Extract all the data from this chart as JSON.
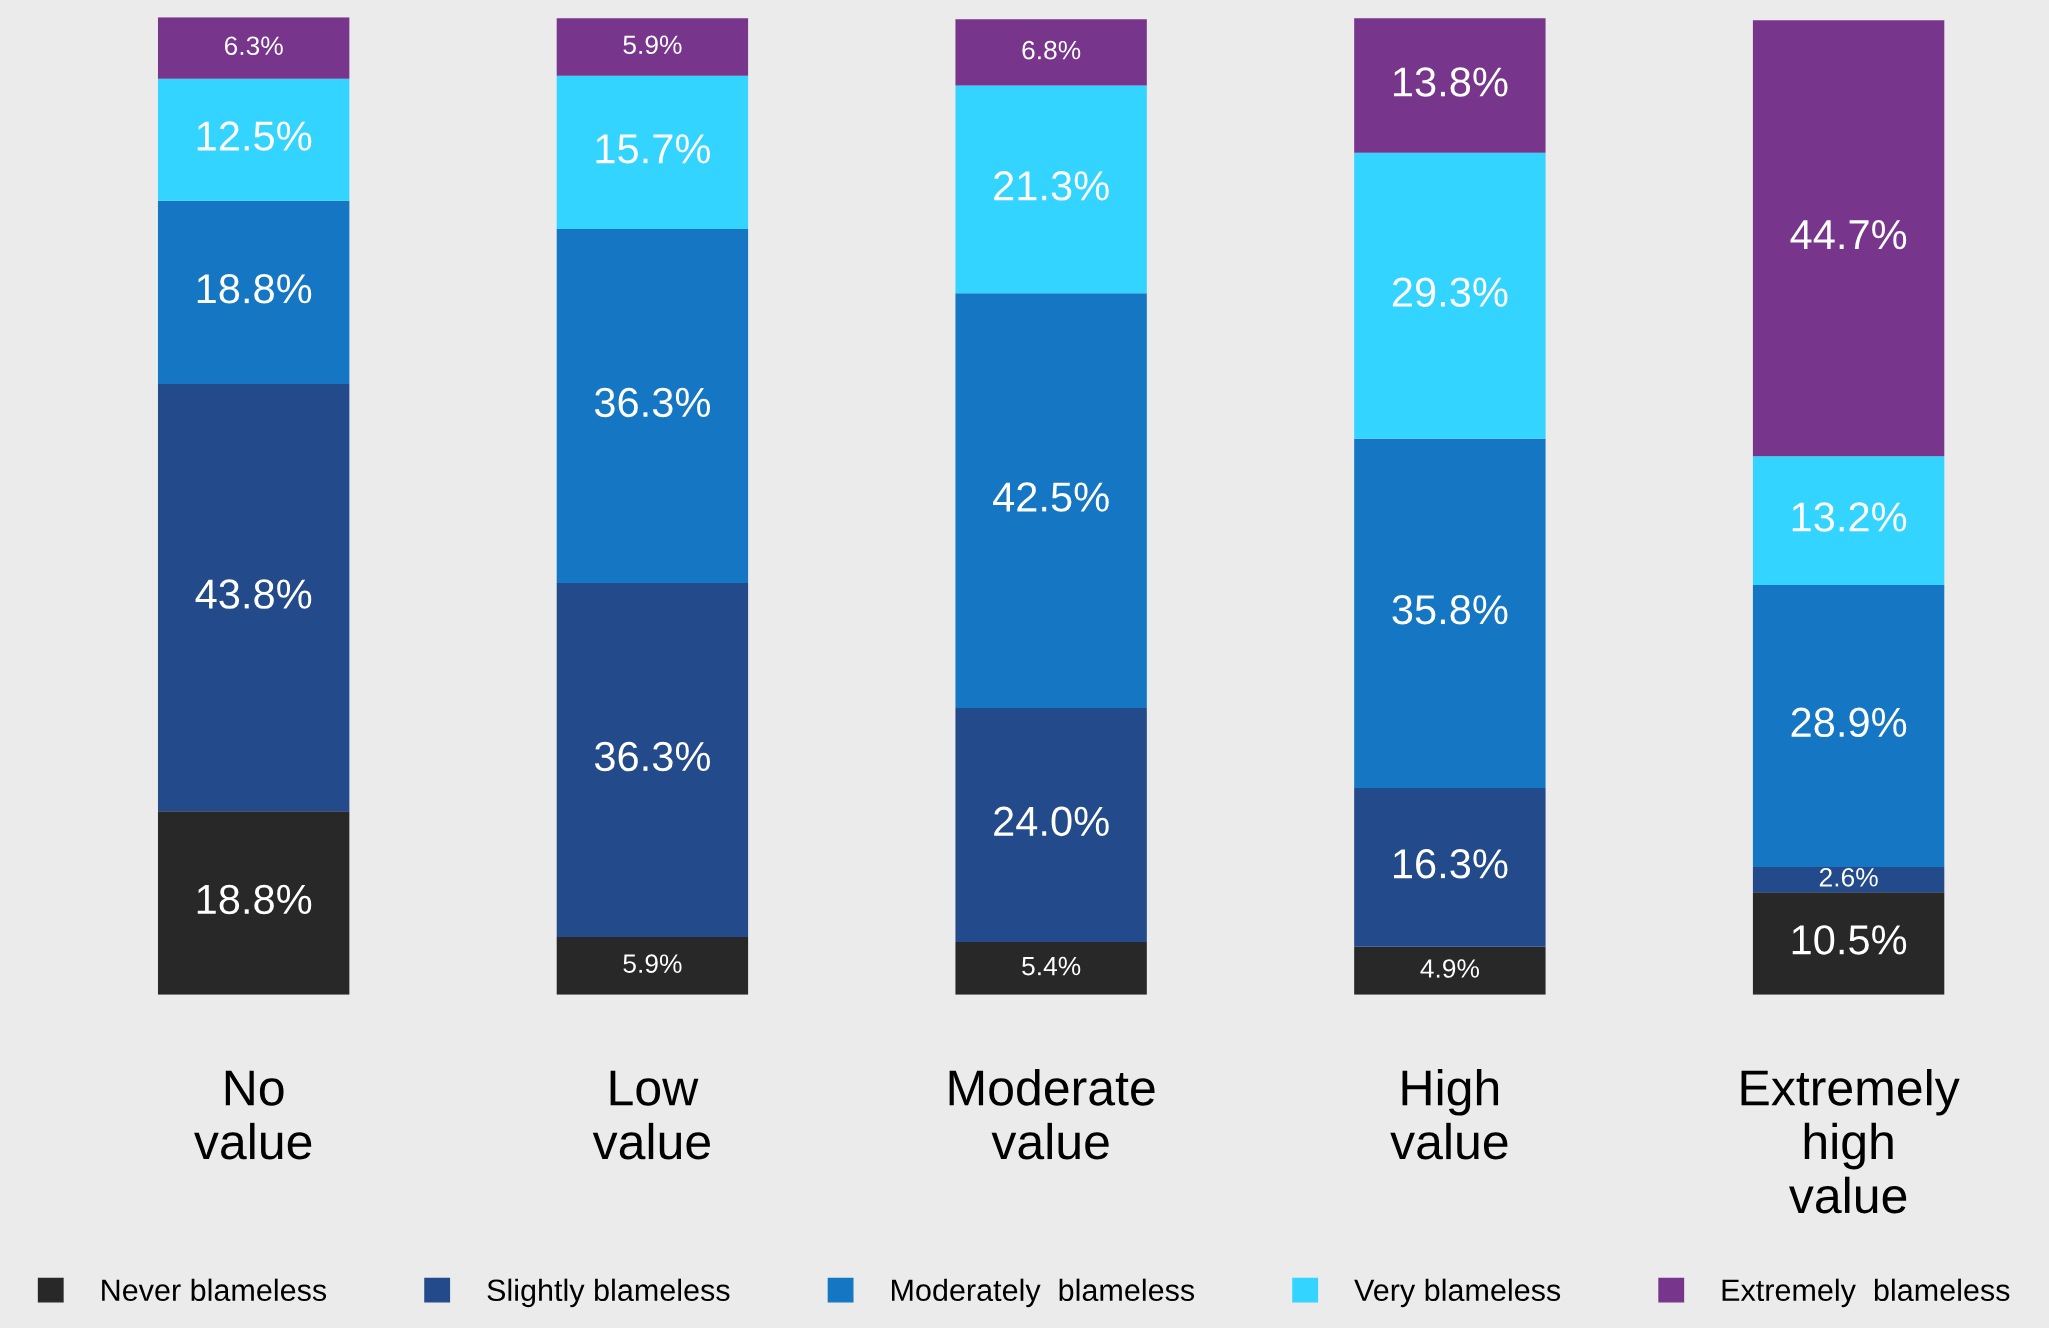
{
  "chart_data": {
    "type": "bar",
    "stacked": true,
    "data_labels": false,
    "legend": "bottom",
    "grid": false,
    "categories": [
      "No\nvalue",
      "Low\nvalue",
      "Moderate\nvalue",
      "High\nvalue",
      "Extremely\nhigh\nvalue"
    ],
    "series": [
      {
        "name": "Never blameless",
        "color": "#282828",
        "values": [
          18.8,
          5.9,
          5.4,
          4.9,
          10.5
        ],
        "value_labels": [
          "18.8%",
          "5.9%",
          "5.4%",
          "4.9%",
          "10.5%"
        ]
      },
      {
        "name": "Slightly blameless",
        "color": "#234a8a",
        "values": [
          43.8,
          36.3,
          24.0,
          16.3,
          2.6
        ],
        "value_labels": [
          "43.8%",
          "36.3%",
          "24.0%",
          "16.3%",
          "2.6%"
        ]
      },
      {
        "name": "Moderately  blameless",
        "color": "#1577c4",
        "values": [
          18.8,
          36.3,
          42.5,
          35.8,
          28.9
        ],
        "value_labels": [
          "18.8%",
          "36.3%",
          "42.5%",
          "35.8%",
          "28.9%"
        ]
      },
      {
        "name": "Very blameless",
        "color": "#33d4ff",
        "values": [
          12.5,
          15.7,
          21.3,
          29.3,
          13.2
        ],
        "value_labels": [
          "12.5%",
          "15.7%",
          "21.3%",
          "29.3%",
          "13.2%"
        ]
      },
      {
        "name": "Extremely  blameless",
        "color": "#77358c",
        "values": [
          6.3,
          5.9,
          6.8,
          13.8,
          44.7
        ],
        "value_labels": [
          "6.3%",
          "5.9%",
          "6.8%",
          "13.8%",
          "44.7%"
        ]
      }
    ]
  }
}
